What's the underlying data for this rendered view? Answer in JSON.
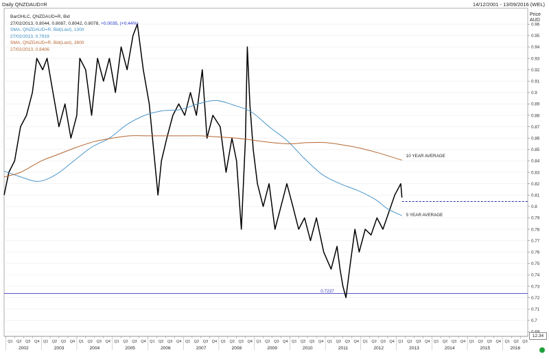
{
  "header": {
    "title": "Daily QNZDAUD=R",
    "date_range": "14/12/2001 - 13/09/2016 (WEL)"
  },
  "legend": {
    "bar_label": "BarOHLC, QNZDAUD=R, Bid",
    "bar_values": "27/02/2013, 0.8044, 0.8087, 0.8042, 0.8078,",
    "bar_change": "+0.0035, (+0.44%)",
    "sma1_label": "SMA, QNZDAUD=R, Bid(Last), 1300",
    "sma1_value": "27/02/2013, 0.7919",
    "sma2_label": "SMA, QNZDAUD=R, Bid(Last), 2600",
    "sma2_value": "27/02/2013, 0.8406"
  },
  "axis": {
    "title_line1": "Price",
    "title_line2": "AUD",
    "value_box": "12.34"
  },
  "chart_data": {
    "type": "line",
    "title": "Daily QNZDAUD=R",
    "ylabel": "Price AUD",
    "ylim": [
      0.686,
      0.974
    ],
    "xlim": [
      "2001-12-14",
      "2016-09-13"
    ],
    "y_ticks": [
      0.69,
      0.7,
      0.71,
      0.72,
      0.73,
      0.74,
      0.75,
      0.76,
      0.77,
      0.78,
      0.79,
      0.8,
      0.81,
      0.82,
      0.83,
      0.84,
      0.85,
      0.86,
      0.87,
      0.88,
      0.89,
      0.9,
      0.91,
      0.92,
      0.93,
      0.94,
      0.95,
      0.96
    ],
    "y_tick_labels": [
      "0.69",
      "0.7",
      "0.71",
      "0.72",
      "0.73",
      "0.74",
      "0.75",
      "0.76",
      "0.77",
      "0.78",
      "0.79",
      "0.8",
      "0.81",
      "0.82",
      "0.83",
      "0.84",
      "0.85",
      "0.86",
      "0.87",
      "0.88",
      "0.89",
      "0.9",
      "0.91",
      "0.92",
      "0.93",
      "0.94",
      "0.95",
      "0.96"
    ],
    "x_year_labels": [
      "2002",
      "2003",
      "2004",
      "2005",
      "2006",
      "2007",
      "2008",
      "2009",
      "2010",
      "2011",
      "2012",
      "2013",
      "2014",
      "2015",
      "2016"
    ],
    "quarter_labels": [
      "Q1",
      "Q2",
      "Q3",
      "Q4"
    ],
    "series": [
      {
        "name": "BarOHLC, QNZDAUD=R, Bid",
        "color": "#000000",
        "points": [
          [
            "2001-12-14",
            0.81
          ],
          [
            "2002-02-01",
            0.83
          ],
          [
            "2002-04-01",
            0.84
          ],
          [
            "2002-06-01",
            0.87
          ],
          [
            "2002-08-01",
            0.88
          ],
          [
            "2002-10-01",
            0.9
          ],
          [
            "2002-11-15",
            0.93
          ],
          [
            "2003-01-15",
            0.92
          ],
          [
            "2003-03-01",
            0.93
          ],
          [
            "2003-05-01",
            0.9
          ],
          [
            "2003-07-01",
            0.87
          ],
          [
            "2003-09-01",
            0.89
          ],
          [
            "2003-11-01",
            0.86
          ],
          [
            "2004-01-01",
            0.88
          ],
          [
            "2004-02-01",
            0.93
          ],
          [
            "2004-04-01",
            0.92
          ],
          [
            "2004-06-01",
            0.88
          ],
          [
            "2004-08-01",
            0.93
          ],
          [
            "2004-10-01",
            0.91
          ],
          [
            "2004-12-01",
            0.93
          ],
          [
            "2005-02-01",
            0.9
          ],
          [
            "2005-04-01",
            0.94
          ],
          [
            "2005-06-01",
            0.92
          ],
          [
            "2005-08-01",
            0.95
          ],
          [
            "2005-09-15",
            0.96
          ],
          [
            "2005-11-15",
            0.92
          ],
          [
            "2006-01-15",
            0.89
          ],
          [
            "2006-03-01",
            0.85
          ],
          [
            "2006-04-15",
            0.81
          ],
          [
            "2006-05-20",
            0.84
          ],
          [
            "2006-07-15",
            0.86
          ],
          [
            "2006-09-15",
            0.88
          ],
          [
            "2006-11-15",
            0.89
          ],
          [
            "2007-01-15",
            0.88
          ],
          [
            "2007-03-15",
            0.9
          ],
          [
            "2007-05-15",
            0.88
          ],
          [
            "2007-07-15",
            0.92
          ],
          [
            "2007-09-01",
            0.86
          ],
          [
            "2007-11-01",
            0.88
          ],
          [
            "2008-01-15",
            0.87
          ],
          [
            "2008-03-15",
            0.83
          ],
          [
            "2008-05-15",
            0.86
          ],
          [
            "2008-07-01",
            0.84
          ],
          [
            "2008-08-20",
            0.78
          ],
          [
            "2008-10-01",
            0.86
          ],
          [
            "2008-10-20",
            0.94
          ],
          [
            "2008-11-15",
            0.89
          ],
          [
            "2008-12-20",
            0.85
          ],
          [
            "2009-02-01",
            0.82
          ],
          [
            "2009-04-01",
            0.8
          ],
          [
            "2009-06-01",
            0.82
          ],
          [
            "2009-08-01",
            0.78
          ],
          [
            "2009-10-01",
            0.8
          ],
          [
            "2009-12-01",
            0.82
          ],
          [
            "2010-02-01",
            0.8
          ],
          [
            "2010-04-01",
            0.78
          ],
          [
            "2010-06-01",
            0.79
          ],
          [
            "2010-08-01",
            0.77
          ],
          [
            "2010-10-01",
            0.79
          ],
          [
            "2010-12-15",
            0.76
          ],
          [
            "2011-03-01",
            0.745
          ],
          [
            "2011-05-01",
            0.765
          ],
          [
            "2011-06-01",
            0.745
          ],
          [
            "2011-07-01",
            0.73
          ],
          [
            "2011-08-01",
            0.72
          ],
          [
            "2011-09-15",
            0.75
          ],
          [
            "2011-11-01",
            0.78
          ],
          [
            "2011-12-15",
            0.76
          ],
          [
            "2012-02-15",
            0.78
          ],
          [
            "2012-04-15",
            0.775
          ],
          [
            "2012-06-15",
            0.79
          ],
          [
            "2012-08-15",
            0.78
          ],
          [
            "2012-10-15",
            0.795
          ],
          [
            "2012-12-15",
            0.81
          ],
          [
            "2013-02-15",
            0.82
          ],
          [
            "2013-02-27",
            0.8078
          ]
        ]
      },
      {
        "name": "SMA, QNZDAUD=R, Bid(Last), 1300",
        "color": "#4a95c8",
        "points": [
          [
            "2001-12-14",
            0.831
          ],
          [
            "2002-06-01",
            0.826
          ],
          [
            "2002-12-01",
            0.822
          ],
          [
            "2003-06-01",
            0.828
          ],
          [
            "2003-12-01",
            0.84
          ],
          [
            "2004-06-01",
            0.852
          ],
          [
            "2004-12-01",
            0.86
          ],
          [
            "2005-06-01",
            0.872
          ],
          [
            "2005-12-01",
            0.88
          ],
          [
            "2006-06-01",
            0.884
          ],
          [
            "2006-12-01",
            0.885
          ],
          [
            "2007-06-01",
            0.89
          ],
          [
            "2007-12-01",
            0.893
          ],
          [
            "2008-06-01",
            0.889
          ],
          [
            "2008-12-01",
            0.883
          ],
          [
            "2009-06-01",
            0.87
          ],
          [
            "2009-12-01",
            0.858
          ],
          [
            "2010-06-01",
            0.842
          ],
          [
            "2010-12-01",
            0.828
          ],
          [
            "2011-06-01",
            0.82
          ],
          [
            "2011-12-01",
            0.814
          ],
          [
            "2012-06-01",
            0.806
          ],
          [
            "2012-10-01",
            0.798
          ],
          [
            "2013-02-27",
            0.7919
          ]
        ]
      },
      {
        "name": "SMA, QNZDAUD=R, Bid(Last), 2600",
        "color": "#b5652e",
        "points": [
          [
            "2001-12-14",
            0.826
          ],
          [
            "2002-06-01",
            0.83
          ],
          [
            "2003-01-01",
            0.84
          ],
          [
            "2003-07-01",
            0.846
          ],
          [
            "2004-01-01",
            0.852
          ],
          [
            "2004-07-01",
            0.857
          ],
          [
            "2005-01-01",
            0.86
          ],
          [
            "2005-07-01",
            0.862
          ],
          [
            "2006-01-01",
            0.862
          ],
          [
            "2006-07-01",
            0.862
          ],
          [
            "2007-01-01",
            0.862
          ],
          [
            "2007-07-01",
            0.862
          ],
          [
            "2008-01-01",
            0.861
          ],
          [
            "2008-07-01",
            0.86
          ],
          [
            "2009-01-01",
            0.858
          ],
          [
            "2009-07-01",
            0.856
          ],
          [
            "2010-01-01",
            0.855
          ],
          [
            "2010-07-01",
            0.856
          ],
          [
            "2011-01-01",
            0.856
          ],
          [
            "2011-07-01",
            0.854
          ],
          [
            "2012-01-01",
            0.851
          ],
          [
            "2012-07-01",
            0.847
          ],
          [
            "2013-02-27",
            0.8406
          ]
        ]
      }
    ],
    "lines": [
      {
        "label": "0.7237",
        "value": 0.7237,
        "from": "2001-12-14",
        "to": "2016-09-13",
        "color": "#3b3fc0",
        "style": "solid"
      },
      {
        "label": "",
        "value": 0.8044,
        "from": "2013-02-27",
        "to": "2016-09-13",
        "color": "#2a2aa8",
        "style": "dashed"
      }
    ],
    "annotations": [
      {
        "text": "10 YEAR AVERAGE",
        "x": "2013-02-27",
        "y": 0.8445
      },
      {
        "text": "5 YEAR AVERAGE",
        "x": "2013-02-27",
        "y": 0.7925
      }
    ],
    "grid": true,
    "legend": "top-left"
  }
}
